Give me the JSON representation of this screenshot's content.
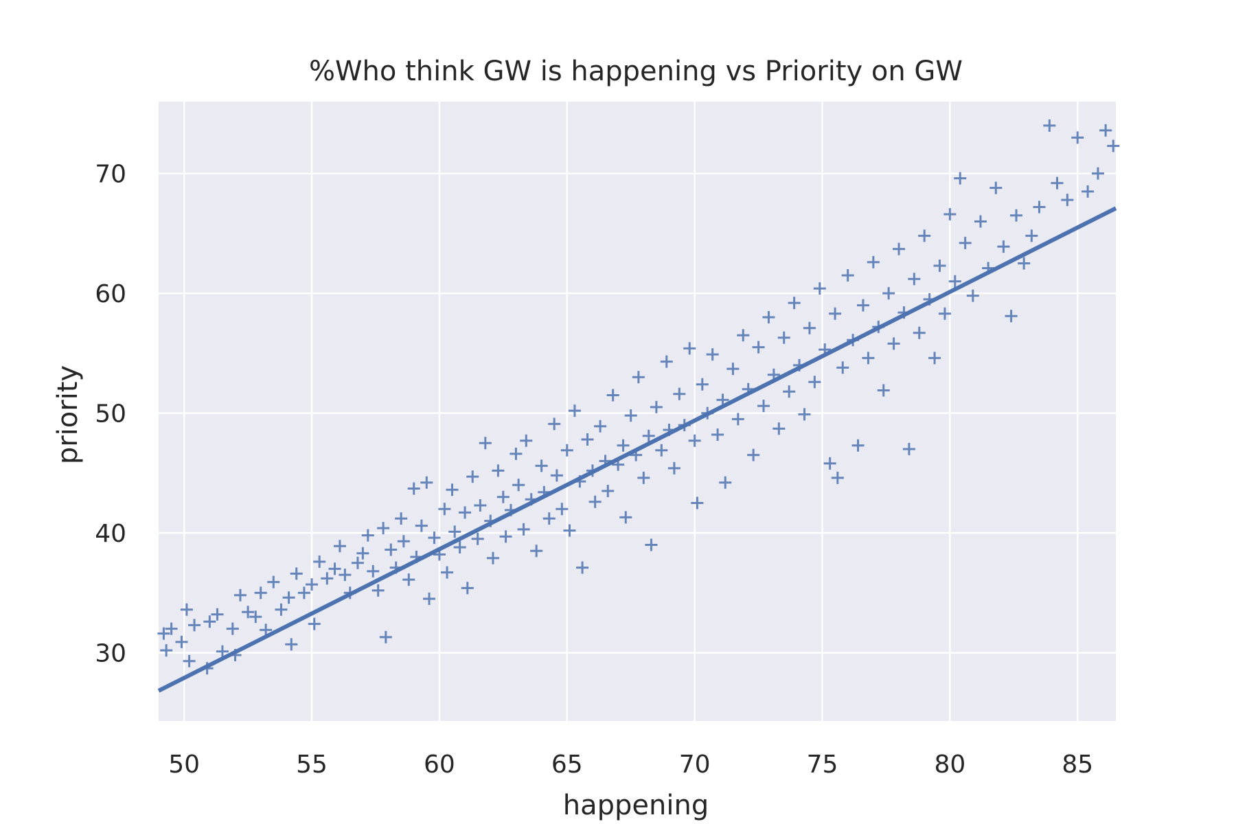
{
  "chart_data": {
    "type": "scatter",
    "title": "%Who think GW is happening vs Priority on GW",
    "xlabel": "happening",
    "ylabel": "priority",
    "xlim": [
      49.0,
      86.5
    ],
    "ylim": [
      24.3,
      76.0
    ],
    "xticks": [
      50,
      55,
      60,
      65,
      70,
      75,
      80,
      85
    ],
    "xtick_labels": [
      "50",
      "55",
      "60",
      "65",
      "70",
      "75",
      "80",
      "85"
    ],
    "yticks": [
      30,
      40,
      50,
      60,
      70
    ],
    "ytick_labels": [
      "30",
      "40",
      "50",
      "60",
      "70"
    ],
    "grid": true,
    "marker": "+",
    "colors": {
      "points": "#4c72b0",
      "line": "#4c72b0",
      "background": "#eaeaf2",
      "grid": "#ffffff"
    },
    "regression_line": {
      "slope": 1.074,
      "intercept": -25.8
    },
    "series": [
      {
        "values": [
          [
            49.2,
            31.6
          ],
          [
            49.3,
            30.2
          ],
          [
            49.5,
            32.0
          ],
          [
            49.9,
            30.9
          ],
          [
            50.1,
            33.6
          ],
          [
            50.2,
            29.3
          ],
          [
            50.4,
            32.3
          ],
          [
            50.9,
            28.7
          ],
          [
            51.0,
            32.6
          ],
          [
            51.3,
            33.2
          ],
          [
            51.5,
            30.1
          ],
          [
            51.9,
            32.0
          ],
          [
            52.0,
            29.8
          ],
          [
            52.2,
            34.8
          ],
          [
            52.5,
            33.4
          ],
          [
            52.8,
            33.0
          ],
          [
            53.0,
            35.0
          ],
          [
            53.2,
            31.9
          ],
          [
            53.5,
            35.9
          ],
          [
            53.8,
            33.6
          ],
          [
            54.1,
            34.6
          ],
          [
            54.2,
            30.7
          ],
          [
            54.4,
            36.6
          ],
          [
            54.7,
            35.0
          ],
          [
            55.0,
            35.7
          ],
          [
            55.1,
            32.4
          ],
          [
            55.3,
            37.6
          ],
          [
            55.6,
            36.2
          ],
          [
            55.9,
            37.0
          ],
          [
            56.1,
            38.9
          ],
          [
            56.3,
            36.5
          ],
          [
            56.5,
            35.0
          ],
          [
            56.8,
            37.5
          ],
          [
            57.0,
            38.3
          ],
          [
            57.2,
            39.8
          ],
          [
            57.4,
            36.8
          ],
          [
            57.6,
            35.2
          ],
          [
            57.8,
            40.4
          ],
          [
            57.9,
            31.3
          ],
          [
            58.1,
            38.6
          ],
          [
            58.3,
            37.1
          ],
          [
            58.5,
            41.2
          ],
          [
            58.6,
            39.3
          ],
          [
            58.8,
            36.1
          ],
          [
            59.0,
            43.7
          ],
          [
            59.1,
            38.0
          ],
          [
            59.3,
            40.6
          ],
          [
            59.5,
            44.2
          ],
          [
            59.6,
            34.5
          ],
          [
            59.8,
            39.6
          ],
          [
            60.0,
            38.2
          ],
          [
            60.2,
            42.0
          ],
          [
            60.3,
            36.7
          ],
          [
            60.5,
            43.6
          ],
          [
            60.6,
            40.1
          ],
          [
            60.8,
            38.8
          ],
          [
            61.0,
            41.7
          ],
          [
            61.1,
            35.4
          ],
          [
            61.3,
            44.7
          ],
          [
            61.5,
            39.5
          ],
          [
            61.6,
            42.3
          ],
          [
            61.8,
            47.5
          ],
          [
            62.0,
            41.0
          ],
          [
            62.1,
            37.9
          ],
          [
            62.3,
            45.2
          ],
          [
            62.5,
            43.0
          ],
          [
            62.6,
            39.7
          ],
          [
            62.8,
            41.9
          ],
          [
            63.0,
            46.6
          ],
          [
            63.1,
            44.0
          ],
          [
            63.3,
            40.3
          ],
          [
            63.4,
            47.7
          ],
          [
            63.6,
            42.8
          ],
          [
            63.8,
            38.5
          ],
          [
            64.0,
            45.6
          ],
          [
            64.1,
            43.4
          ],
          [
            64.3,
            41.2
          ],
          [
            64.5,
            49.1
          ],
          [
            64.6,
            44.8
          ],
          [
            64.8,
            42.0
          ],
          [
            65.0,
            46.9
          ],
          [
            65.1,
            40.2
          ],
          [
            65.3,
            50.2
          ],
          [
            65.5,
            44.3
          ],
          [
            65.6,
            37.1
          ],
          [
            65.8,
            47.8
          ],
          [
            66.0,
            45.2
          ],
          [
            66.1,
            42.6
          ],
          [
            66.3,
            48.9
          ],
          [
            66.5,
            46.0
          ],
          [
            66.6,
            43.5
          ],
          [
            66.8,
            51.5
          ],
          [
            67.0,
            45.7
          ],
          [
            67.2,
            47.3
          ],
          [
            67.3,
            41.3
          ],
          [
            67.5,
            49.8
          ],
          [
            67.7,
            46.5
          ],
          [
            67.8,
            53.0
          ],
          [
            68.0,
            44.6
          ],
          [
            68.2,
            48.1
          ],
          [
            68.3,
            39.0
          ],
          [
            68.5,
            50.5
          ],
          [
            68.7,
            46.9
          ],
          [
            68.9,
            54.3
          ],
          [
            69.0,
            48.6
          ],
          [
            69.2,
            45.4
          ],
          [
            69.4,
            51.6
          ],
          [
            69.6,
            49.0
          ],
          [
            69.8,
            55.4
          ],
          [
            70.0,
            47.7
          ],
          [
            70.1,
            42.5
          ],
          [
            70.3,
            52.4
          ],
          [
            70.5,
            50.0
          ],
          [
            70.7,
            54.9
          ],
          [
            70.9,
            48.2
          ],
          [
            71.1,
            51.1
          ],
          [
            71.2,
            44.2
          ],
          [
            71.5,
            53.7
          ],
          [
            71.7,
            49.5
          ],
          [
            71.9,
            56.5
          ],
          [
            72.1,
            52.0
          ],
          [
            72.3,
            46.5
          ],
          [
            72.5,
            55.5
          ],
          [
            72.7,
            50.6
          ],
          [
            72.9,
            58.0
          ],
          [
            73.1,
            53.2
          ],
          [
            73.3,
            48.7
          ],
          [
            73.5,
            56.3
          ],
          [
            73.7,
            51.8
          ],
          [
            73.9,
            59.2
          ],
          [
            74.1,
            54.0
          ],
          [
            74.3,
            49.9
          ],
          [
            74.5,
            57.1
          ],
          [
            74.7,
            52.6
          ],
          [
            74.9,
            60.4
          ],
          [
            75.1,
            55.3
          ],
          [
            75.3,
            45.8
          ],
          [
            75.5,
            58.3
          ],
          [
            75.6,
            44.6
          ],
          [
            75.8,
            53.8
          ],
          [
            76.0,
            61.5
          ],
          [
            76.2,
            56.1
          ],
          [
            76.4,
            47.3
          ],
          [
            76.6,
            59.0
          ],
          [
            76.8,
            54.6
          ],
          [
            77.0,
            62.6
          ],
          [
            77.2,
            57.2
          ],
          [
            77.4,
            51.9
          ],
          [
            77.6,
            60.0
          ],
          [
            77.8,
            55.8
          ],
          [
            78.0,
            63.7
          ],
          [
            78.2,
            58.4
          ],
          [
            78.4,
            47.0
          ],
          [
            78.6,
            61.2
          ],
          [
            78.8,
            56.7
          ],
          [
            79.0,
            64.8
          ],
          [
            79.2,
            59.5
          ],
          [
            79.4,
            54.6
          ],
          [
            79.6,
            62.3
          ],
          [
            79.8,
            58.3
          ],
          [
            80.0,
            66.6
          ],
          [
            80.2,
            61.0
          ],
          [
            80.4,
            69.6
          ],
          [
            80.6,
            64.2
          ],
          [
            80.9,
            59.8
          ],
          [
            81.2,
            66.0
          ],
          [
            81.5,
            62.1
          ],
          [
            81.8,
            68.8
          ],
          [
            82.1,
            63.9
          ],
          [
            82.4,
            58.1
          ],
          [
            82.6,
            66.5
          ],
          [
            82.9,
            62.5
          ],
          [
            83.2,
            64.8
          ],
          [
            83.5,
            67.2
          ],
          [
            83.9,
            74.0
          ],
          [
            84.2,
            69.2
          ],
          [
            84.6,
            67.8
          ],
          [
            85.0,
            73.0
          ],
          [
            85.4,
            68.5
          ],
          [
            85.8,
            70.0
          ],
          [
            86.1,
            73.6
          ],
          [
            86.4,
            72.3
          ]
        ]
      }
    ]
  }
}
